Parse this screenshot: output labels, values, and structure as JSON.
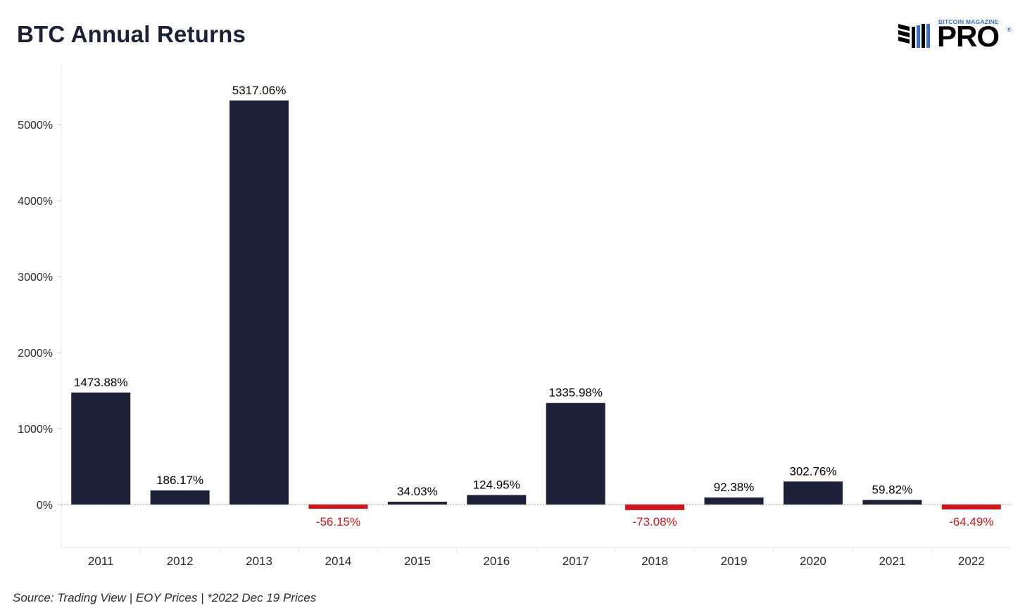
{
  "header": {
    "title": "BTC Annual Returns"
  },
  "logo": {
    "small_text": "BITCOIN MAGAZINE",
    "big_text": "PRO",
    "reg_mark": "®"
  },
  "footer": {
    "source": "Source: Trading View | EOY Prices | *2022 Dec 19 Prices"
  },
  "colors": {
    "positive": "#1c2137",
    "negative": "#d0141a",
    "axis_text": "#2a2a2a"
  },
  "chart_data": {
    "type": "bar",
    "title": "BTC Annual Returns",
    "xlabel": "",
    "ylabel": "",
    "categories": [
      "2011",
      "2012",
      "2013",
      "2014",
      "2015",
      "2016",
      "2017",
      "2018",
      "2019",
      "2020",
      "2021",
      "2022"
    ],
    "values": [
      1473.88,
      186.17,
      5317.06,
      -56.15,
      34.03,
      124.95,
      1335.98,
      -73.08,
      92.38,
      302.76,
      59.82,
      -64.49
    ],
    "data_labels": [
      "1473.88%",
      "186.17%",
      "5317.06%",
      "-56.15%",
      "34.03%",
      "124.95%",
      "1335.98%",
      "-73.08%",
      "92.38%",
      "302.76%",
      "59.82%",
      "-64.49%"
    ],
    "y_ticks": [
      0,
      1000,
      2000,
      3000,
      4000,
      5000
    ],
    "y_tick_labels": [
      "0%",
      "1000%",
      "2000%",
      "3000%",
      "4000%",
      "5000%"
    ],
    "ylim": [
      -600,
      5800
    ],
    "grid": false,
    "legend": "none"
  }
}
